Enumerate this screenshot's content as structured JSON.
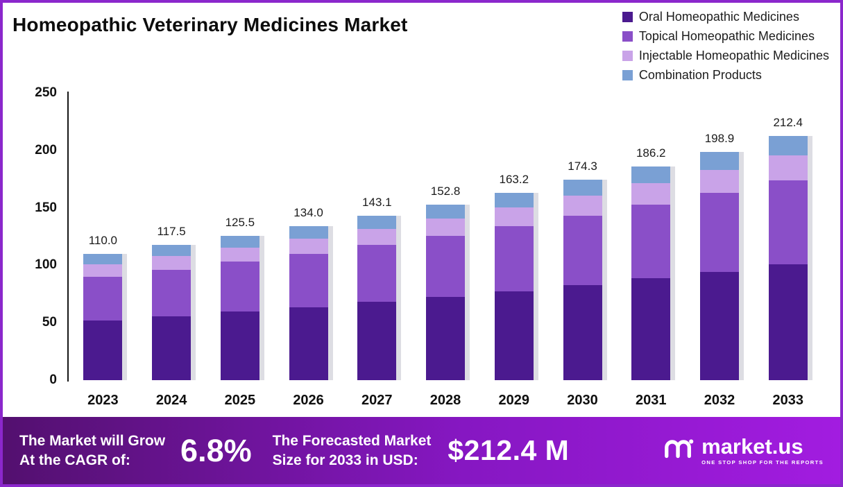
{
  "title": "Homeopathic Veterinary Medicines Market",
  "colors": {
    "frame_border": "#8b27cc",
    "footer_gradient_left": "#53106f",
    "footer_gradient_mid": "#8617c2",
    "footer_gradient_right": "#a21ce0",
    "axis": "#161616"
  },
  "chart_data": {
    "type": "bar",
    "stacked": true,
    "title": "Homeopathic Veterinary Medicines Market",
    "xlabel": "",
    "ylabel": "",
    "ylim": [
      0,
      250
    ],
    "yticks": [
      0,
      50,
      100,
      150,
      200,
      250
    ],
    "grid": false,
    "legend_position": "top-right",
    "categories": [
      "2023",
      "2024",
      "2025",
      "2026",
      "2027",
      "2028",
      "2029",
      "2030",
      "2031",
      "2032",
      "2033"
    ],
    "series": [
      {
        "name": "Oral Homeopathic Medicines",
        "color": "#4b1a8f",
        "values": [
          52.0,
          55.5,
          59.5,
          63.5,
          68.0,
          72.5,
          77.5,
          83.0,
          88.5,
          94.5,
          101.0
        ]
      },
      {
        "name": "Topical Homeopathic Medicines",
        "color": "#8a4fc8",
        "values": [
          38.0,
          40.5,
          43.5,
          46.5,
          49.5,
          53.0,
          56.5,
          60.0,
          64.2,
          68.6,
          73.2
        ]
      },
      {
        "name": "Injectable Homeopathic Medicines",
        "color": "#c9a3e8",
        "values": [
          11.0,
          12.0,
          12.5,
          13.5,
          14.3,
          15.3,
          16.2,
          17.4,
          18.6,
          19.9,
          21.2
        ]
      },
      {
        "name": "Combination Products",
        "color": "#7aa0d4",
        "values": [
          9.0,
          9.5,
          10.0,
          10.5,
          11.3,
          12.0,
          13.0,
          13.9,
          14.9,
          15.9,
          17.0
        ]
      }
    ],
    "totals": [
      110.0,
      117.5,
      125.5,
      134.0,
      143.1,
      152.8,
      163.2,
      174.3,
      186.2,
      198.9,
      212.4
    ],
    "total_labels": [
      "110.0",
      "117.5",
      "125.5",
      "134.0",
      "143.1",
      "152.8",
      "163.2",
      "174.3",
      "186.2",
      "198.9",
      "212.4"
    ]
  },
  "footer": {
    "growth_label_line1": "The Market will Grow",
    "growth_label_line2": "At the CAGR of:",
    "cagr_value": "6.8%",
    "forecast_label_line1": "The Forecasted Market",
    "forecast_label_line2": "Size for 2033 in USD:",
    "forecast_value": "$212.4 M",
    "brand": {
      "name": "market.us",
      "tagline": "ONE STOP SHOP FOR THE REPORTS"
    }
  }
}
